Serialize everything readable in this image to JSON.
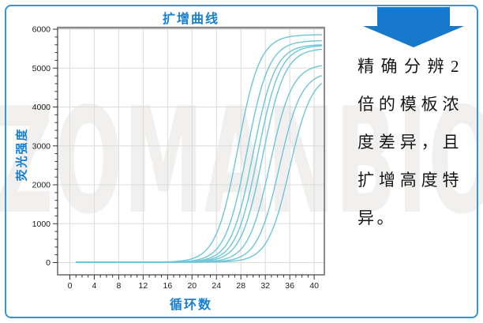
{
  "frame": {
    "border_color": "#3494d9",
    "background": "#ffffff"
  },
  "watermark": {
    "text": "ZOMANBIO"
  },
  "chart_data": {
    "type": "line",
    "title": "扩增曲线",
    "xlabel": "循环数",
    "ylabel": "荧光强度",
    "title_color": "#157fd2",
    "axis_label_color": "#157fd2",
    "curve_color": "#6ec6d9",
    "grid": true,
    "xlim": [
      -2,
      42
    ],
    "ylim": [
      -250,
      6100
    ],
    "x_ticks": [
      0,
      4,
      8,
      12,
      16,
      20,
      24,
      28,
      32,
      36,
      40
    ],
    "y_ticks": [
      0,
      1000,
      2000,
      3000,
      4000,
      5000,
      6000
    ],
    "x_minor_step": 1,
    "y_minor_step": 200,
    "x_start": 1,
    "x_end": 41.3,
    "model": "sigmoid: y = baseline + plateau / (1 + exp(-(x - ct_midpoint) / slope))",
    "baseline": 10,
    "slope": 1.8,
    "series": [
      {
        "name": "curve-1",
        "ct_midpoint": 27.5,
        "plateau": 5850
      },
      {
        "name": "curve-2",
        "ct_midpoint": 29.0,
        "plateau": 5700
      },
      {
        "name": "curve-3",
        "ct_midpoint": 30.0,
        "plateau": 5600
      },
      {
        "name": "curve-4",
        "ct_midpoint": 30.8,
        "plateau": 5580
      },
      {
        "name": "curve-5",
        "ct_midpoint": 31.6,
        "plateau": 5500
      },
      {
        "name": "curve-6",
        "ct_midpoint": 32.8,
        "plateau": 5100
      },
      {
        "name": "curve-7",
        "ct_midpoint": 34.3,
        "plateau": 4900
      },
      {
        "name": "curve-8",
        "ct_midpoint": 36.0,
        "plateau": 4850
      }
    ]
  },
  "callout": {
    "arrow_color": "#1779cc",
    "text": "精确分辨2倍的模板浓度差异，且扩增高度特异。"
  }
}
